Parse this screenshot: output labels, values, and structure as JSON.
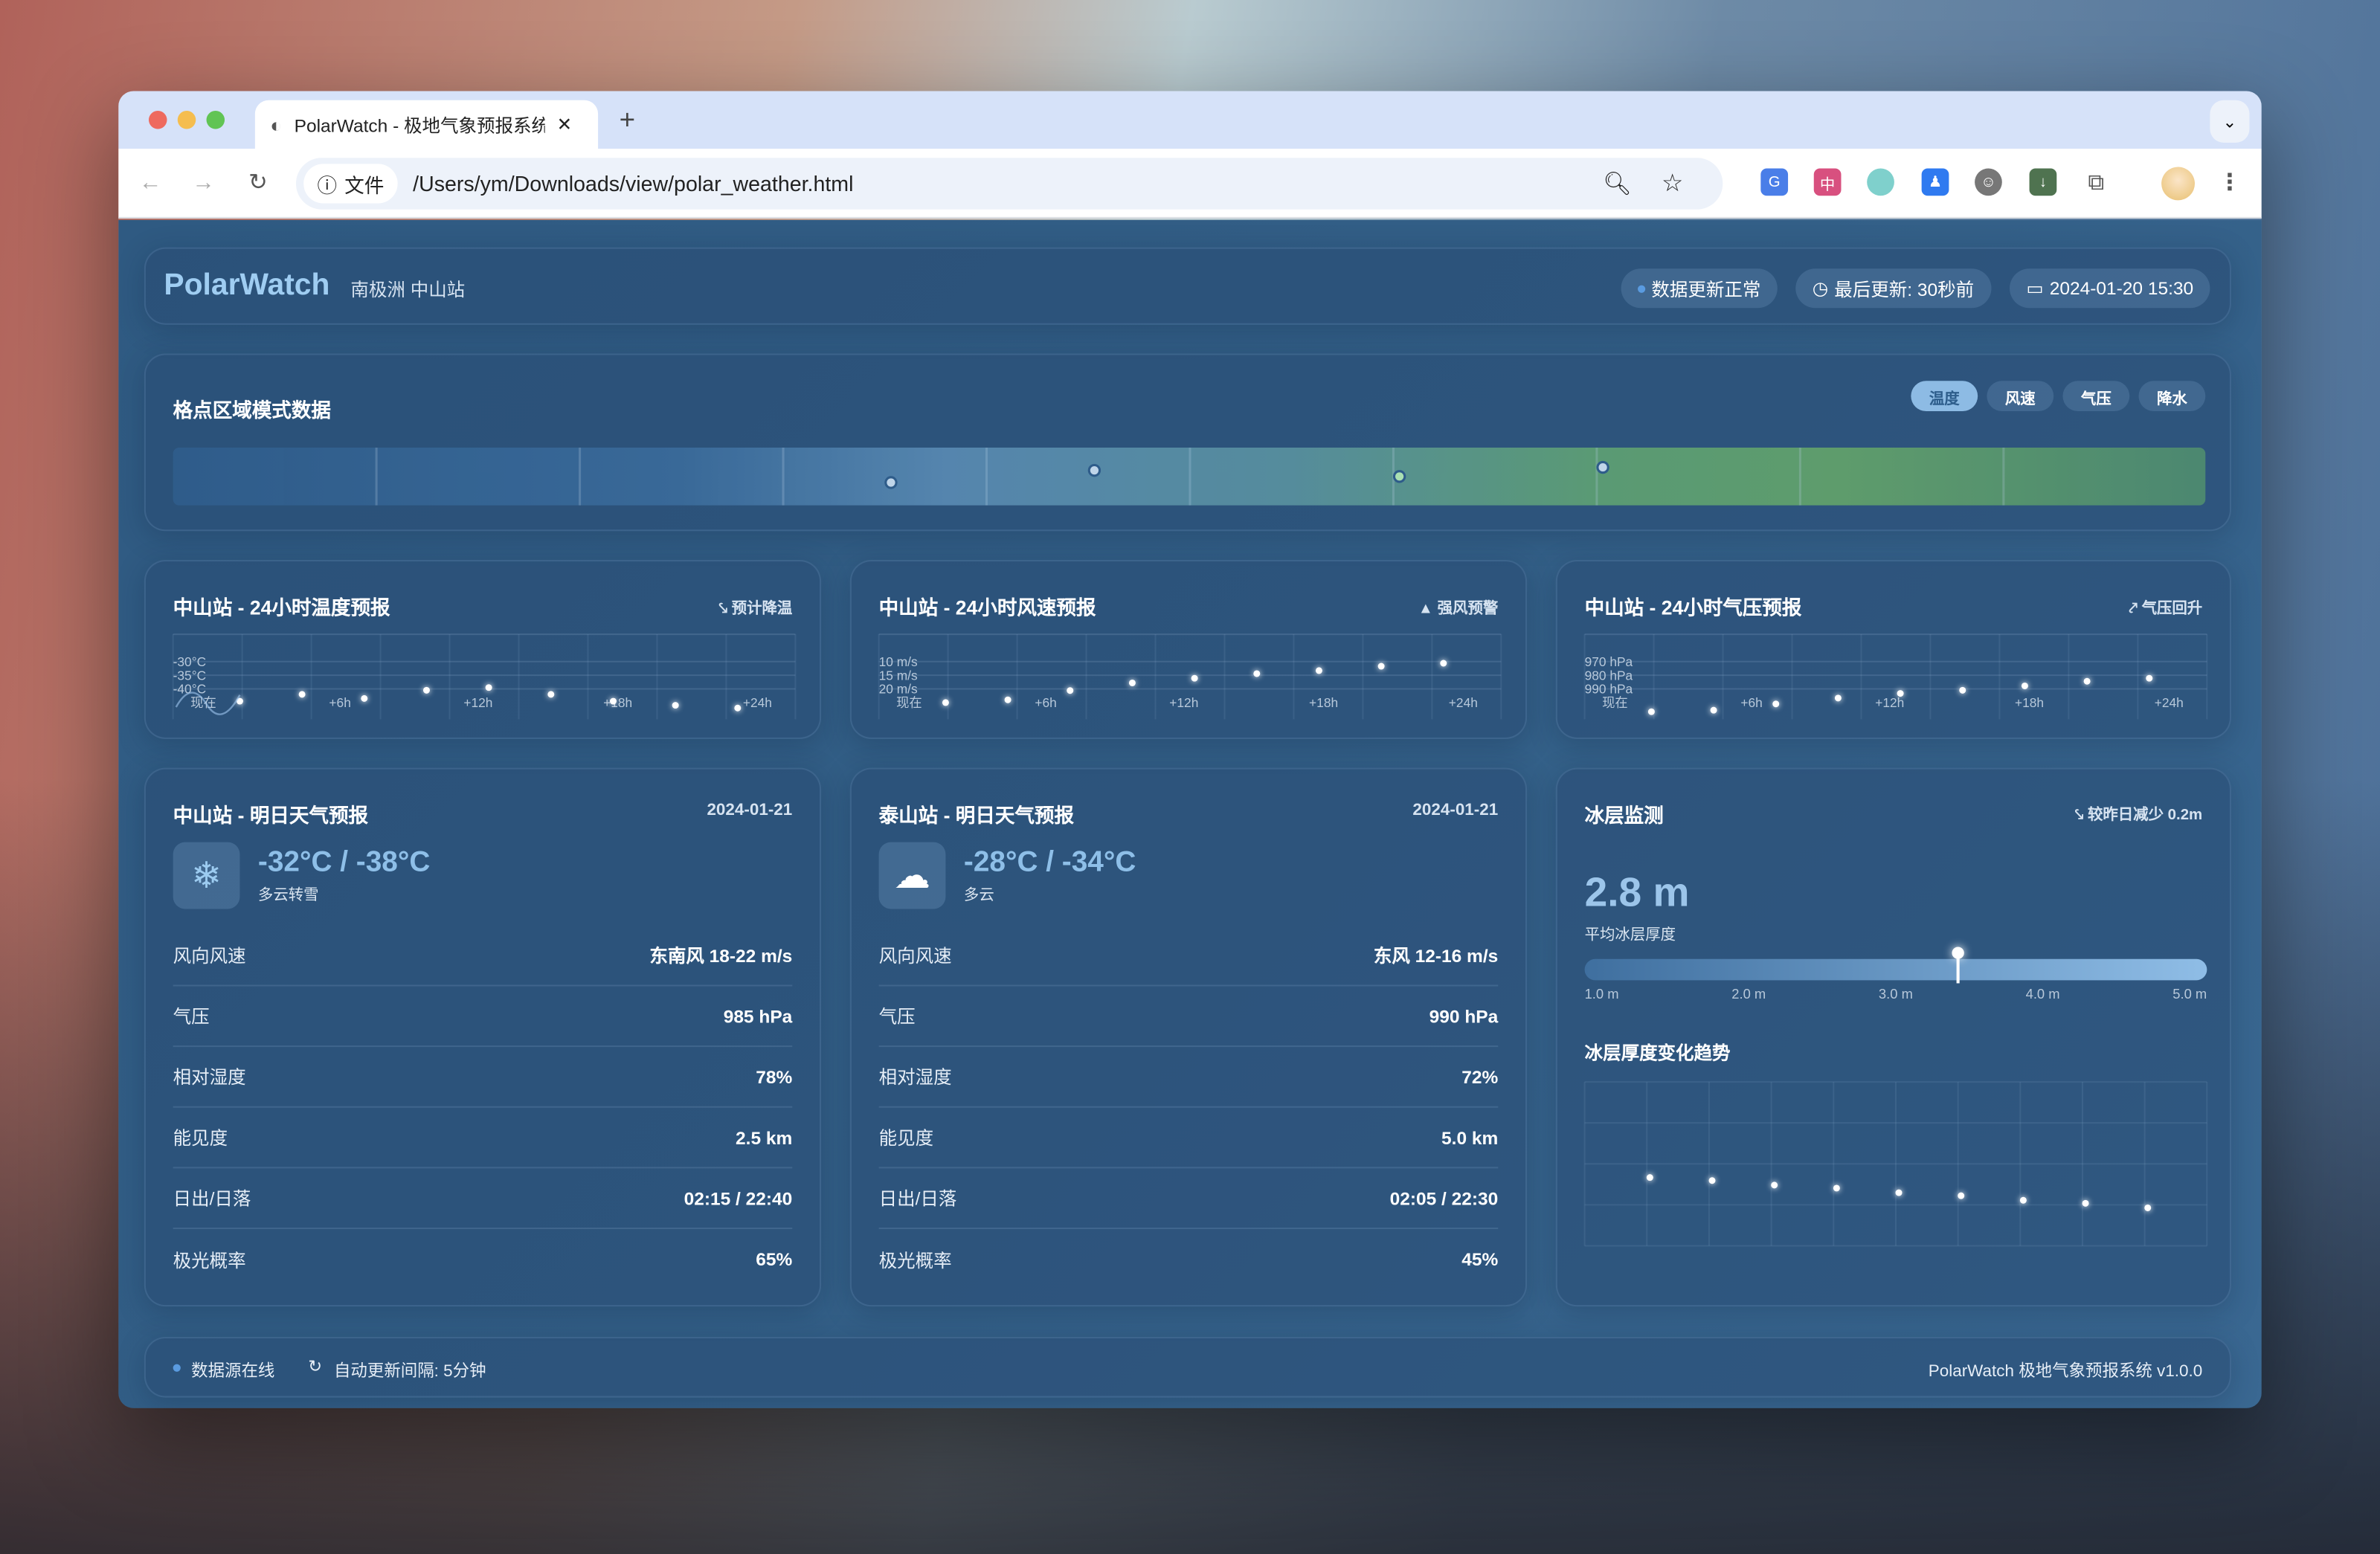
{
  "browser": {
    "tab_title": "PolarWatch - 极地气象预报系统",
    "url_chip": "文件",
    "url": "/Users/ym/Downloads/view/polar_weather.html",
    "colors": {
      "tabbar": "#d6e2f9",
      "red": "#ee6a5f",
      "yellow": "#f5bd4f",
      "green": "#61c454"
    }
  },
  "header": {
    "brand": "PolarWatch",
    "location": "南极洲 中山站",
    "status": "数据更新正常",
    "last_update": "最后更新: 30秒前",
    "datetime": "2024-01-20 15:30"
  },
  "grid": {
    "title": "格点区域模式数据",
    "tabs": [
      {
        "label": "温度",
        "active": true
      },
      {
        "label": "风速",
        "active": false
      },
      {
        "label": "气压",
        "active": false
      },
      {
        "label": "降水",
        "active": false
      }
    ]
  },
  "charts": {
    "temp": {
      "title": "中山站 - 24小时温度预报",
      "badge": "预计降温",
      "badge_icon": "trend-down-icon"
    },
    "wind": {
      "title": "中山站 - 24小时风速预报",
      "badge": "强风预警",
      "badge_icon": "warning-icon"
    },
    "pressure": {
      "title": "中山站 - 24小时气压预报",
      "badge": "气压回升",
      "badge_icon": "trend-up-icon"
    }
  },
  "chart_data": [
    {
      "type": "scatter",
      "title": "中山站 - 24小时温度预报",
      "x_tick_labels": [
        "现在",
        "+6h",
        "+12h",
        "+18h",
        "+24h"
      ],
      "y_tick_labels": [
        "-30°C",
        "-35°C",
        "-40°C"
      ],
      "y_ticks": [
        -30,
        -35,
        -40
      ],
      "grid": true,
      "values": [
        -44.5,
        -42,
        -43.5,
        -40.5,
        -39.5,
        -42,
        -44.5,
        -46,
        -47
      ]
    },
    {
      "type": "scatter",
      "title": "中山站 - 24小时风速预报",
      "x_tick_labels": [
        "现在",
        "+6h",
        "+12h",
        "+18h",
        "+24h"
      ],
      "y_tick_labels": [
        "10 m/s",
        "15 m/s",
        "20 m/s"
      ],
      "y_ticks": [
        10,
        15,
        20
      ],
      "grid": true,
      "values": [
        25,
        24,
        20.6,
        17.8,
        16.1,
        14.4,
        13.3,
        11.7,
        10.6
      ]
    },
    {
      "type": "scatter",
      "title": "中山站 - 24小时气压预报",
      "x_tick_labels": [
        "现在",
        "+6h",
        "+12h",
        "+18h",
        "+24h"
      ],
      "y_tick_labels": [
        "970 hPa",
        "980 hPa",
        "990 hPa"
      ],
      "y_ticks": [
        970,
        980,
        990
      ],
      "grid": true,
      "values": [
        1006.7,
        1005.6,
        1001,
        996.7,
        993.3,
        991,
        987.8,
        984.4,
        982.2
      ]
    },
    {
      "type": "scatter",
      "title": "冰层厚度变化趋势",
      "grid": true,
      "values": [
        3.0,
        2.98,
        2.95,
        2.93,
        2.9,
        2.88,
        2.85,
        2.83,
        2.8
      ]
    }
  ],
  "forecasts": [
    {
      "title": "中山站 - 明日天气预报",
      "date": "2024-01-21",
      "icon": "snowflake-icon",
      "temp": "-32°C / -38°C",
      "desc": "多云转雪",
      "rows": [
        {
          "k": "风向风速",
          "v": "东南风 18-22 m/s"
        },
        {
          "k": "气压",
          "v": "985 hPa"
        },
        {
          "k": "相对湿度",
          "v": "78%"
        },
        {
          "k": "能见度",
          "v": "2.5 km"
        },
        {
          "k": "日出/日落",
          "v": "02:15 / 22:40"
        },
        {
          "k": "极光概率",
          "v": "65%"
        }
      ]
    },
    {
      "title": "泰山站 - 明日天气预报",
      "date": "2024-01-21",
      "icon": "cloud-icon",
      "temp": "-28°C / -34°C",
      "desc": "多云",
      "rows": [
        {
          "k": "风向风速",
          "v": "东风 12-16 m/s"
        },
        {
          "k": "气压",
          "v": "990 hPa"
        },
        {
          "k": "相对湿度",
          "v": "72%"
        },
        {
          "k": "能见度",
          "v": "5.0 km"
        },
        {
          "k": "日出/日落",
          "v": "02:05 / 22:30"
        },
        {
          "k": "极光概率",
          "v": "45%"
        }
      ]
    }
  ],
  "ice": {
    "title": "冰层监测",
    "change": "较昨日减少 0.2m",
    "value": "2.8 m",
    "label": "平均冰层厚度",
    "scale": [
      "1.0 m",
      "2.0 m",
      "3.0 m",
      "4.0 m",
      "5.0 m"
    ],
    "marker_fraction": 0.6,
    "trend_title": "冰层厚度变化趋势"
  },
  "footer": {
    "source": "数据源在线",
    "interval": "自动更新间隔: 5分钟",
    "version": "PolarWatch 极地气象预报系统 v1.0.0"
  }
}
